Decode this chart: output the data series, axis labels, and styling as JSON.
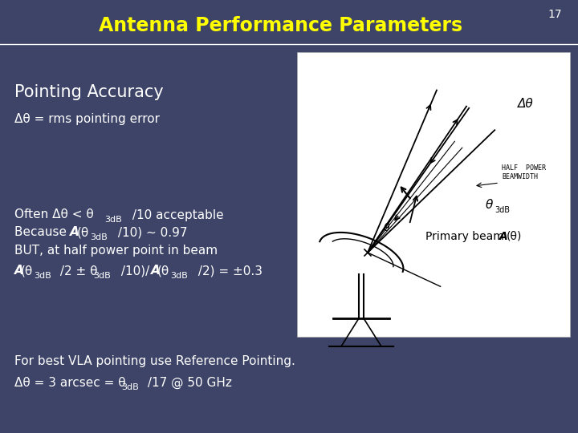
{
  "title": "Antenna Performance Parameters",
  "slide_number": "17",
  "bg_color": "#3d4468",
  "title_color": "#ffff00",
  "text_color": "#ffffff",
  "title_fontsize": 17,
  "slide_num_fontsize": 10,
  "heading_fontsize": 15,
  "body_fontsize": 11,
  "heading": "Pointing Accuracy",
  "line1": "Δθ = rms pointing error",
  "footer1": "For best VLA pointing use Reference Pointing.",
  "footer2": "Δθ = 3 arcsec = θ",
  "footer2b": "3dB",
  "footer2c": " /17 @ 50 GHz"
}
